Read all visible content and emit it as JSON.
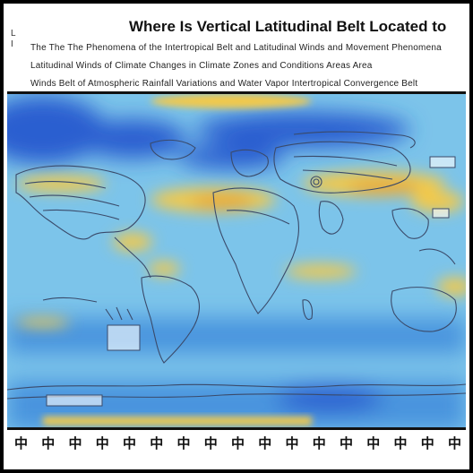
{
  "header": {
    "title": "Where Is Vertical Latitudinal Belt Located to",
    "left_labels": [
      "L",
      "I"
    ],
    "caption_lines": [
      "The The The Phenomena of the Intertropical Belt and Latitudinal Winds and Movement Phenomena",
      "Latitudinal Winds of Climate Changes in Climate Zones and Conditions Areas Area",
      "Winds Belt of Atmospheric Rainfall Variations and Water Vapor Intertropical Convergence Belt"
    ]
  },
  "map": {
    "colors": {
      "ocean_light": "#7cc4ea",
      "ocean_mid": "#4a94de",
      "ocean_deep": "#2a5fd0",
      "belt_yellow": "#f2c94c",
      "belt_orange": "#e8a93a",
      "land_line": "#3a4a6a"
    }
  },
  "axis": {
    "tick_labels": [
      "中",
      "中",
      "中",
      "中",
      "中",
      "中",
      "中",
      "中",
      "中",
      "中",
      "中",
      "中",
      "中",
      "中",
      "中",
      "中",
      "中"
    ]
  }
}
